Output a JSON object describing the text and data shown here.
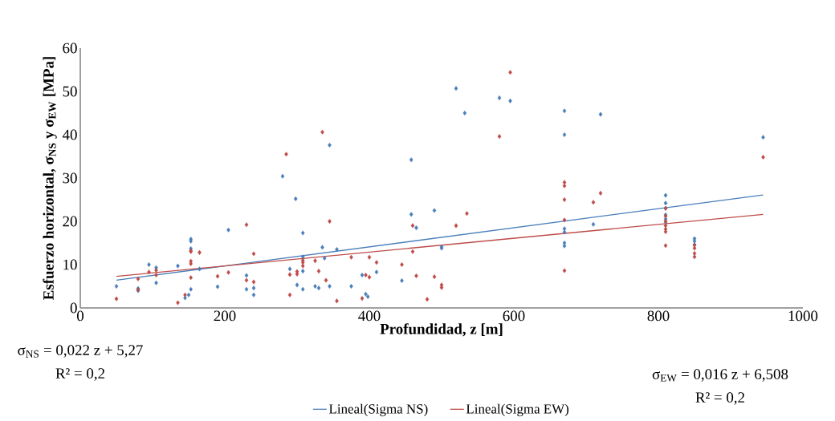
{
  "chart_data": {
    "type": "scatter",
    "xlabel": "Profundidad, z [m]",
    "ylabel": "Esfuerzo horizontal,  σ$_{NS}$ y σ$_{EW}$ [MPa]",
    "xlim": [
      0,
      1000
    ],
    "ylim": [
      0,
      60
    ],
    "xticks": [
      0,
      200,
      400,
      600,
      800,
      1000
    ],
    "yticks": [
      0,
      10,
      20,
      30,
      40,
      50,
      60
    ],
    "grid": false,
    "legend": "bottom",
    "marker": "diamond",
    "annotations": [
      "σ$_{NS}$ = 0,022 z + 5,27",
      "R² = 0,2",
      "σ$_{EW}$ = 0,016 z + 6,508",
      "R² = 0,2"
    ],
    "series": [
      {
        "color": "#4a7ebb",
        "x": [
          50,
          80,
          80,
          95,
          105,
          105,
          135,
          145,
          150,
          153,
          153,
          153,
          153,
          165,
          190,
          205,
          230,
          230,
          240,
          240,
          280,
          290,
          298,
          300,
          308,
          308,
          308,
          308,
          325,
          330,
          335,
          338,
          345,
          345,
          355,
          375,
          395,
          398,
          410,
          390,
          445,
          458,
          458,
          465,
          490,
          500,
          500,
          520,
          532,
          580,
          595,
          670,
          670,
          670,
          670,
          670,
          670,
          710,
          720,
          810,
          810,
          810,
          810,
          810,
          810,
          850,
          850,
          850,
          945
        ],
        "values": [
          5,
          4.5,
          4,
          10,
          9.3,
          5.8,
          9.7,
          2.3,
          3,
          4.3,
          15.9,
          15.4,
          13.7,
          9,
          4.9,
          18,
          4.3,
          7.5,
          3,
          4.6,
          30.4,
          9,
          25.2,
          5.3,
          17.3,
          11.8,
          8.5,
          4.3,
          5,
          4.6,
          14,
          11.5,
          37.6,
          5,
          13.5,
          5,
          3.2,
          2.6,
          8.3,
          7.6,
          6.3,
          34.2,
          21.6,
          18.5,
          22.5,
          13.8,
          14.1,
          50.7,
          45,
          48.5,
          47.8,
          45.5,
          40,
          17.5,
          15,
          14.3,
          18.3,
          19.3,
          44.7,
          26,
          24.2,
          23,
          21.5,
          20.5,
          19.8,
          16,
          15.4,
          14.6,
          39.4
        ]
      },
      {
        "color": "#be4b48",
        "x": [
          50,
          80,
          80,
          95,
          105,
          105,
          135,
          145,
          153,
          153,
          153,
          153,
          153,
          165,
          190,
          205,
          230,
          230,
          240,
          240,
          285,
          290,
          290,
          300,
          300,
          308,
          308,
          308,
          325,
          330,
          335,
          340,
          345,
          355,
          375,
          390,
          395,
          400,
          400,
          410,
          445,
          460,
          460,
          465,
          480,
          490,
          500,
          500,
          520,
          535,
          580,
          595,
          670,
          670,
          670,
          670,
          670,
          710,
          720,
          810,
          810,
          810,
          810,
          810,
          810,
          810,
          850,
          850,
          850,
          850,
          945
        ],
        "values": [
          2.1,
          4.2,
          6.7,
          8.3,
          7.6,
          8.7,
          1.2,
          3,
          13,
          13.2,
          10.8,
          10.2,
          7,
          12.8,
          7.3,
          8.2,
          19.2,
          6.4,
          12.5,
          6,
          35.5,
          7.7,
          3,
          8.4,
          7.8,
          11,
          10.5,
          9.7,
          10.9,
          8.5,
          40.6,
          6.4,
          20,
          1.6,
          11.7,
          2.2,
          7.6,
          7.1,
          11.7,
          10.5,
          10,
          19,
          13,
          7.4,
          2,
          7.2,
          5.3,
          4.7,
          19,
          21.8,
          39.6,
          54.4,
          29,
          28.2,
          25,
          20.3,
          8.6,
          24.4,
          26.5,
          23,
          21.2,
          20,
          19,
          18.2,
          17.6,
          14.4,
          14.5,
          13.8,
          12.6,
          11.8,
          34.8
        ]
      },
      {
        "type": "line",
        "name": "Lineal(Sigma NS)",
        "color": "#4a7ebb",
        "marker": "none",
        "x": [
          50,
          945
        ],
        "values": [
          6.4,
          26.1
        ]
      },
      {
        "type": "line",
        "name": "Lineal(Sigma EW)",
        "color": "#be4b48",
        "marker": "none",
        "x": [
          50,
          945
        ],
        "values": [
          7.3,
          21.6
        ]
      }
    ]
  }
}
